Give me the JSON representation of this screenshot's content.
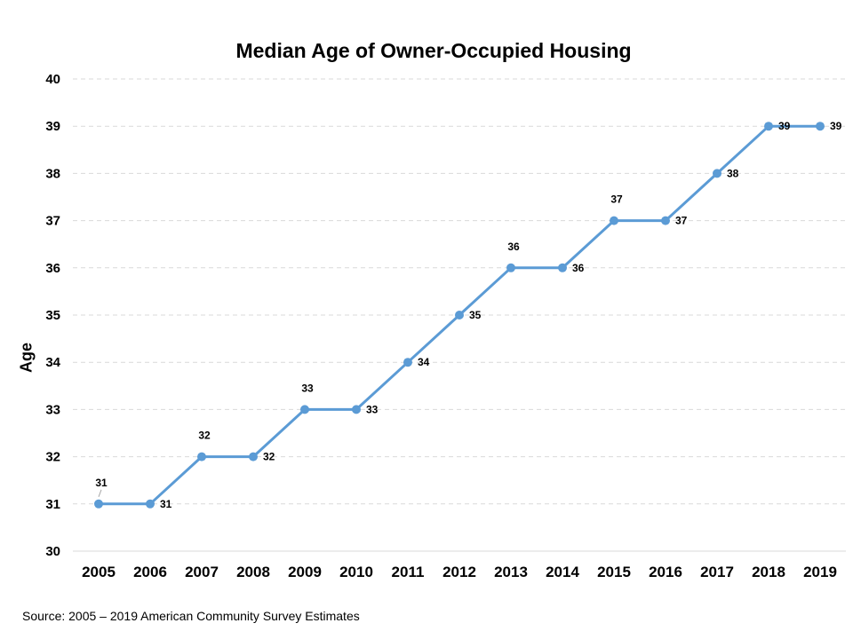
{
  "chart_data": {
    "type": "line",
    "title": "Median Age of Owner-Occupied Housing",
    "xlabel": "",
    "ylabel": "Age",
    "ylim": [
      30,
      40
    ],
    "yticks": [
      30,
      31,
      32,
      33,
      34,
      35,
      36,
      37,
      38,
      39,
      40
    ],
    "categories": [
      "2005",
      "2006",
      "2007",
      "2008",
      "2009",
      "2010",
      "2011",
      "2012",
      "2013",
      "2014",
      "2015",
      "2016",
      "2017",
      "2018",
      "2019"
    ],
    "series": [
      {
        "values": [
          31,
          31,
          32,
          32,
          33,
          33,
          34,
          35,
          36,
          36,
          37,
          37,
          38,
          39,
          39
        ]
      }
    ],
    "label_position": [
      "above",
      "right",
      "above",
      "right",
      "above",
      "right",
      "right",
      "right",
      "above",
      "right",
      "above",
      "right",
      "right",
      "right",
      "right"
    ],
    "grid": true,
    "legend": "none",
    "colors": {
      "series": "#5b9bd5",
      "grid": "#d9d9d9"
    }
  },
  "source": "Source: 2005 – 2019 American Community Survey Estimates"
}
